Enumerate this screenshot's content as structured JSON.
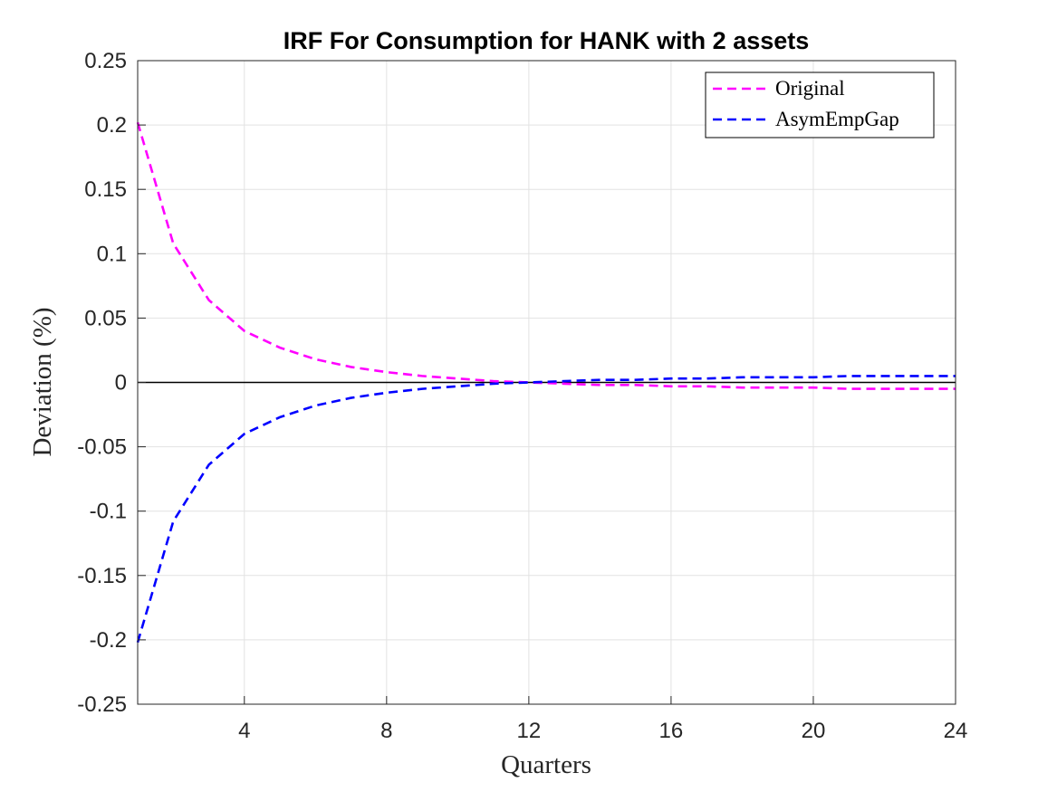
{
  "chart_data": {
    "type": "line",
    "title": "IRF For Consumption for HANK with 2 assets",
    "xlabel": "Quarters",
    "ylabel": "Deviation (%)",
    "xlim": [
      1,
      24
    ],
    "ylim": [
      -0.25,
      0.25
    ],
    "xticks": [
      4,
      8,
      12,
      16,
      20,
      24
    ],
    "xtick_labels": [
      "4",
      "8",
      "12",
      "16",
      "20",
      "24"
    ],
    "yticks": [
      0.25,
      0.2,
      0.15,
      0.1,
      0.05,
      0,
      -0.05,
      -0.1,
      -0.15,
      -0.2,
      -0.25
    ],
    "ytick_labels": [
      "0.25",
      "0.2",
      "0.15",
      "0.1",
      "0.05",
      "0",
      "-0.05",
      "-0.1",
      "-0.15",
      "-0.2",
      "-0.25"
    ],
    "grid": true,
    "legend_position": "top-right",
    "zero_line": true,
    "x": [
      1,
      2,
      3,
      4,
      5,
      6,
      7,
      8,
      9,
      10,
      11,
      12,
      13,
      14,
      15,
      16,
      17,
      18,
      19,
      20,
      21,
      22,
      23,
      24
    ],
    "series": [
      {
        "name": "Original",
        "color": "#ff00ff",
        "style": "dashed",
        "values": [
          0.202,
          0.108,
          0.064,
          0.04,
          0.027,
          0.018,
          0.012,
          0.008,
          0.005,
          0.003,
          0.001,
          0.0,
          -0.001,
          -0.002,
          -0.002,
          -0.003,
          -0.003,
          -0.004,
          -0.004,
          -0.004,
          -0.005,
          -0.005,
          -0.005,
          -0.005
        ]
      },
      {
        "name": "AsymEmpGap",
        "color": "#0000ff",
        "style": "dashed",
        "values": [
          -0.202,
          -0.108,
          -0.064,
          -0.04,
          -0.027,
          -0.018,
          -0.012,
          -0.008,
          -0.005,
          -0.003,
          -0.001,
          0.0,
          0.001,
          0.002,
          0.002,
          0.003,
          0.003,
          0.004,
          0.004,
          0.004,
          0.005,
          0.005,
          0.005,
          0.005
        ]
      }
    ]
  }
}
